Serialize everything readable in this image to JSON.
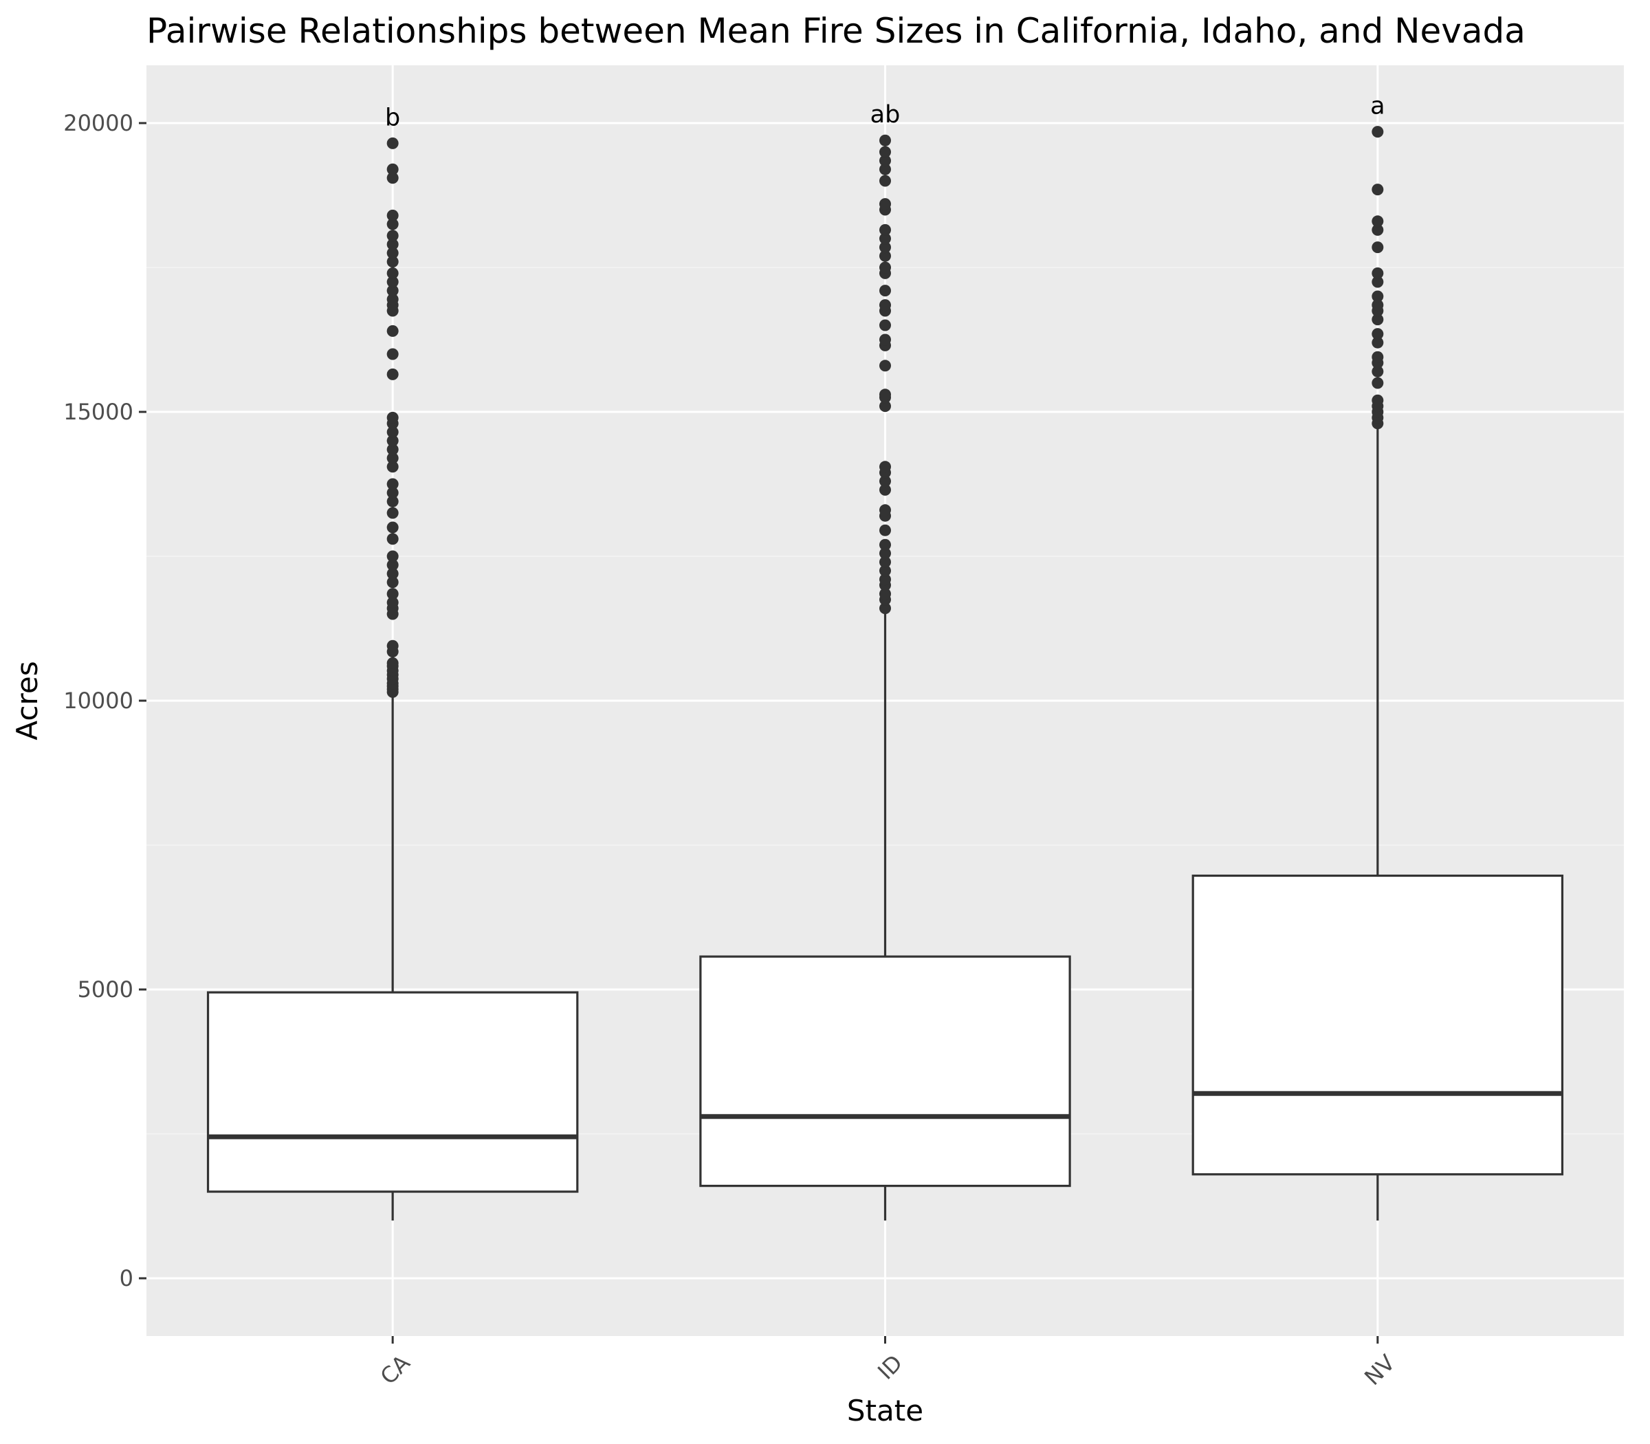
{
  "colors": {
    "panel_background": "#ebebeb",
    "grid_major": "#ffffff",
    "grid_minor": "#f5f5f5",
    "box_fill": "#ffffff",
    "box_line": "#333333",
    "outlier": "#333333",
    "tick_text": "#4d4d4d",
    "text": "#000000"
  },
  "chart_data": {
    "type": "boxplot",
    "title": "Pairwise Relationships between Mean Fire Sizes in California, Idaho, and Nevada",
    "xlabel": "State",
    "ylabel": "Acres",
    "ylim": [
      -1000,
      21000
    ],
    "yticks": [
      0,
      5000,
      10000,
      15000,
      20000
    ],
    "ytick_labels": [
      "0",
      "5000",
      "10000",
      "15000",
      "20000"
    ],
    "grid": true,
    "legend": "none",
    "categories": [
      "CA",
      "ID",
      "NV"
    ],
    "groups": [
      {
        "category": "CA",
        "letter": "b",
        "whisker_low": 1000,
        "q1": 1500,
        "median": 2450,
        "q3": 4950,
        "whisker_high": 10100,
        "outliers": [
          10150,
          10200,
          10250,
          10300,
          10380,
          10450,
          10520,
          10600,
          10650,
          10850,
          10950,
          11500,
          11600,
          11700,
          11850,
          12050,
          12200,
          12350,
          12500,
          12800,
          13000,
          13250,
          13450,
          13600,
          13750,
          14050,
          14200,
          14350,
          14500,
          14650,
          14800,
          14900,
          15650,
          16000,
          16400,
          16750,
          16850,
          16950,
          17100,
          17250,
          17400,
          17600,
          17750,
          17900,
          18050,
          18250,
          18400,
          19050,
          19200,
          19650
        ]
      },
      {
        "category": "ID",
        "letter": "ab",
        "whisker_low": 1000,
        "q1": 1600,
        "median": 2800,
        "q3": 5570,
        "whisker_high": 11550,
        "outliers": [
          11600,
          11750,
          11850,
          12000,
          12100,
          12250,
          12400,
          12550,
          12700,
          12950,
          13200,
          13300,
          13650,
          13800,
          13950,
          14050,
          15100,
          15250,
          15300,
          15800,
          16150,
          16250,
          16500,
          16750,
          16850,
          17100,
          17400,
          17500,
          17700,
          17850,
          18000,
          18150,
          18500,
          18600,
          19000,
          19200,
          19350,
          19500,
          19700
        ]
      },
      {
        "category": "NV",
        "letter": "a",
        "whisker_low": 1000,
        "q1": 1800,
        "median": 3200,
        "q3": 6970,
        "whisker_high": 14750,
        "outliers": [
          14800,
          14900,
          15000,
          15100,
          15200,
          15500,
          15700,
          15850,
          15950,
          16200,
          16350,
          16600,
          16750,
          16850,
          17000,
          17250,
          17400,
          17850,
          18150,
          18300,
          18850,
          19850
        ]
      }
    ]
  }
}
